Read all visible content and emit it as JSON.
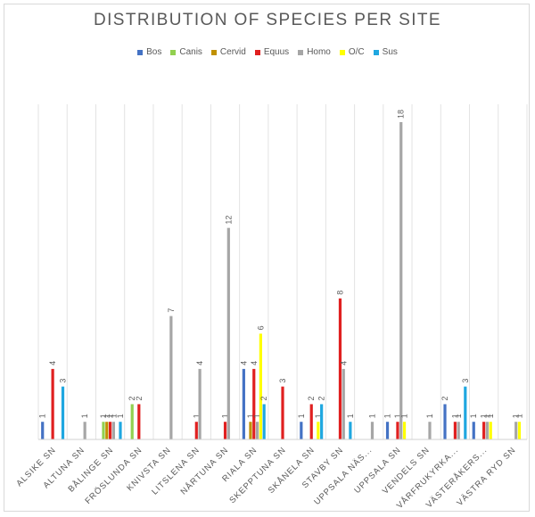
{
  "chart_data": {
    "type": "bar",
    "title": "DISTRIBUTION OF SPECIES PER SITE",
    "xlabel": "",
    "ylabel": "",
    "ylim": [
      0,
      20
    ],
    "grid": "vertical category separators",
    "legend_position": "top",
    "categories": [
      "ALSIKE SN",
      "ALTUNA SN",
      "BÅLINGE SN",
      "FRÖSLUNDA SN",
      "KNIVSTA SN",
      "LITSLENA SN",
      "NÅRTUNA SN",
      "RIALA SN",
      "SKEPPTUNA SN",
      "SKÅNELA SN",
      "STAVBY SN",
      "UPPSALA NÄS...",
      "UPPSALA SN",
      "VENDELS SN",
      "VÅRFRUKYRKA...",
      "VÄSTERÅKERS...",
      "VÄSTRA RYD SN"
    ],
    "series": [
      {
        "name": "Bos",
        "color": "#4472c4",
        "values": [
          1,
          null,
          null,
          null,
          null,
          null,
          null,
          4,
          null,
          1,
          null,
          null,
          1,
          null,
          2,
          1,
          null
        ]
      },
      {
        "name": "Canis",
        "color": "#92d050",
        "values": [
          null,
          null,
          1,
          2,
          null,
          null,
          null,
          null,
          null,
          null,
          null,
          null,
          null,
          null,
          null,
          null,
          null
        ]
      },
      {
        "name": "Cervid",
        "color": "#c09000",
        "values": [
          null,
          null,
          1,
          null,
          null,
          null,
          null,
          1,
          null,
          null,
          null,
          null,
          null,
          null,
          null,
          null,
          null
        ]
      },
      {
        "name": "Equus",
        "color": "#e02020",
        "values": [
          4,
          null,
          1,
          2,
          null,
          1,
          1,
          4,
          3,
          2,
          8,
          null,
          1,
          null,
          1,
          1,
          null
        ]
      },
      {
        "name": "Homo",
        "color": "#a6a6a6",
        "values": [
          null,
          1,
          1,
          null,
          7,
          4,
          12,
          1,
          null,
          null,
          4,
          1,
          18,
          1,
          1,
          1,
          1
        ]
      },
      {
        "name": "O/C",
        "color": "#ffff00",
        "values": [
          null,
          null,
          null,
          null,
          null,
          null,
          null,
          6,
          null,
          1,
          null,
          null,
          1,
          null,
          null,
          1,
          1
        ]
      },
      {
        "name": "Sus",
        "color": "#1fa7e0",
        "values": [
          3,
          null,
          1,
          null,
          null,
          null,
          null,
          2,
          null,
          2,
          1,
          null,
          null,
          null,
          3,
          null,
          null
        ]
      }
    ]
  }
}
